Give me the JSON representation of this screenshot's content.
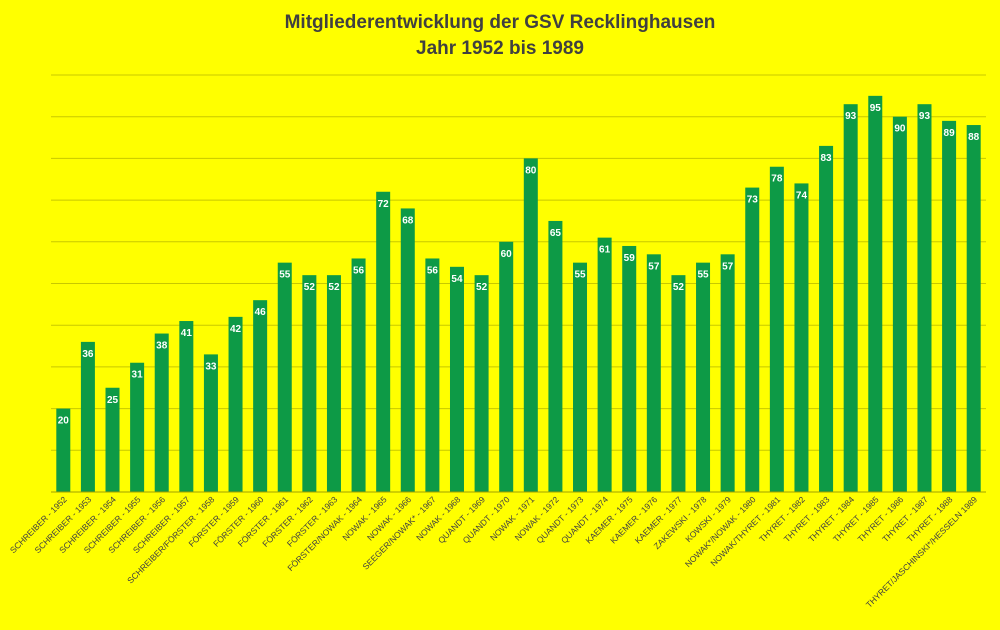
{
  "chart_data": {
    "type": "bar",
    "title": "Mitgliederentwicklung der GSV Recklinghausen",
    "subtitle": "Jahr 1952 bis 1989",
    "categories": [
      "SCHREIBER - 1952",
      "SCHREIBER - 1953",
      "SCHREIBER - 1954",
      "SCHREIBER - 1955",
      "SCHREIBER - 1956",
      "SCHREIBER - 1957",
      "SCHREIBER/FÖRSTER - 1958",
      "FÖRSTER - 1959",
      "FÖRSTER - 1960",
      "FÖRSTER - 1961",
      "FÖRSTER - 1962",
      "FÖRSTER - 1963",
      "FÖRSTER/NOWAK - 1964",
      "NOWAK - 1965",
      "NOWAK - 1966",
      "SEEGER/NOWAK* - 1967",
      "NOWAK - 1968",
      "QUANDT - 1969",
      "QUANDT - 1970",
      "NOWAK - 1971",
      "NOWAK - 1972",
      "QUANDT - 1973",
      "QUANDT - 1974",
      "KAEMER - 1975",
      "KAEMER - 1976",
      "KAEMER - 1977",
      "ZAKEWSKI - 1978",
      "KOWSKI - 1979",
      "NOWAK*/NOWAK - 1980",
      "NOWAK/THYRET - 1981",
      "THYRET - 1982",
      "THYRET - 1983",
      "THYRET - 1984",
      "THYRET - 1985",
      "THYRET - 1986",
      "THYRET - 1987",
      "THYRET - 1988",
      "THYRET/JASCHINSKI*/HESSELN 1989"
    ],
    "values": [
      20,
      36,
      25,
      31,
      38,
      41,
      33,
      42,
      46,
      55,
      52,
      52,
      56,
      72,
      68,
      56,
      54,
      52,
      60,
      80,
      65,
      55,
      61,
      59,
      57,
      52,
      55,
      57,
      73,
      78,
      74,
      83,
      93,
      95,
      90,
      93,
      89,
      88
    ],
    "ylim": [
      0,
      100
    ],
    "grid": true,
    "colors": {
      "background": "#ffff00",
      "bar": "#0d9a46",
      "bar_label": "#ffffff",
      "grid": "#c8c800",
      "title": "#404040",
      "axis_text": "#404040"
    }
  }
}
